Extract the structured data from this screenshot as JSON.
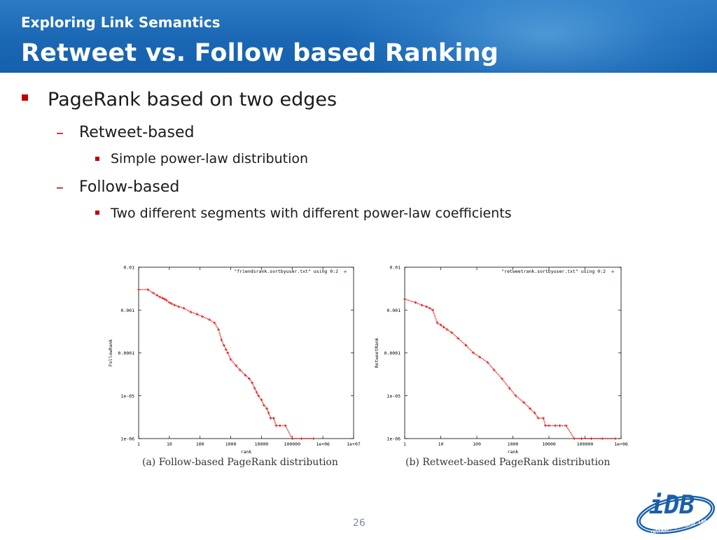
{
  "header": {
    "subtitle": "Exploring Link Semantics",
    "title": "Retweet vs. Follow based Ranking"
  },
  "bullets": {
    "l1": "PageRank based on two edges",
    "retweet": "Retweet-based",
    "retweet_sub": "Simple power-law distribution",
    "follow": "Follow-based",
    "follow_sub": "Two different segments with different power-law coefficients",
    "dash": "–"
  },
  "colors": {
    "accent": "#c00000",
    "header": "#1a67b3",
    "marker": "#e00000"
  },
  "chart_data": [
    {
      "type": "scatter",
      "title": "",
      "caption": "(a) Follow-based PageRank distribution",
      "legend": "\"friendsrank.sortbyuser.txt\" using 0:2",
      "legend_position": "top-right",
      "xlabel": "rank",
      "ylabel": "FollowRank",
      "xscale": "log",
      "yscale": "log",
      "xlim": [
        1,
        10000000
      ],
      "ylim": [
        1e-06,
        0.01
      ],
      "xticks": [
        "1",
        "10",
        "100",
        "1000",
        "10000",
        "100000",
        "1e+06",
        "1e+07"
      ],
      "yticks": [
        "1e-06",
        "1e-05",
        "0.0001",
        "0.001",
        "0.01"
      ],
      "series": [
        {
          "x": [
            1,
            2,
            3,
            4,
            5,
            6,
            7,
            8,
            10,
            12,
            15,
            20,
            30,
            50,
            80,
            120,
            200,
            300,
            400,
            500,
            600,
            700,
            800,
            1000,
            1500,
            2000,
            3000,
            4000,
            5000,
            6000,
            7000,
            8000,
            10000,
            12000,
            15000,
            17000,
            20000,
            25000,
            30000,
            40000,
            60000,
            100000,
            200000,
            500000
          ],
          "y": [
            0.003,
            0.003,
            0.0025,
            0.0022,
            0.002,
            0.0019,
            0.0018,
            0.0017,
            0.0015,
            0.0014,
            0.0013,
            0.0012,
            0.0011,
            0.0009,
            0.0008,
            0.0007,
            0.0006,
            0.0005,
            0.00035,
            0.0002,
            0.00015,
            0.00012,
            0.0001,
            7e-05,
            5e-05,
            4e-05,
            3e-05,
            2.5e-05,
            2e-05,
            1.5e-05,
            1.2e-05,
            1e-05,
            8e-06,
            6e-06,
            5e-06,
            4e-06,
            3e-06,
            3e-06,
            2e-06,
            2e-06,
            2e-06,
            1e-06,
            1e-06,
            1e-06
          ]
        }
      ]
    },
    {
      "type": "scatter",
      "title": "",
      "caption": "(b) Retweet-based PageRank distribution",
      "legend": "\"retweetrank.sortbyuser.txt\" using 0:2",
      "legend_position": "top-right",
      "xlabel": "rank",
      "ylabel": "RetweetRank",
      "xscale": "log",
      "yscale": "log",
      "xlim": [
        1,
        1000000
      ],
      "ylim": [
        1e-06,
        0.01
      ],
      "xticks": [
        "1",
        "10",
        "100",
        "1000",
        "10000",
        "100000",
        "1e+06"
      ],
      "yticks": [
        "1e-06",
        "1e-05",
        "0.0001",
        "0.001",
        "0.01"
      ],
      "series": [
        {
          "x": [
            1,
            2,
            3,
            4,
            5,
            6,
            8,
            10,
            12,
            15,
            20,
            30,
            50,
            80,
            120,
            200,
            300,
            500,
            800,
            1200,
            2000,
            3000,
            4000,
            5000,
            7000,
            8000,
            10000,
            15000,
            20000,
            30000,
            50000,
            80000,
            150000,
            300000,
            700000
          ],
          "y": [
            0.0018,
            0.0015,
            0.0013,
            0.0012,
            0.0011,
            0.001,
            0.0005,
            0.00045,
            0.0004,
            0.00035,
            0.0003,
            0.00022,
            0.00015,
            0.0001,
            8e-05,
            6e-05,
            4e-05,
            2.5e-05,
            1.5e-05,
            1e-05,
            7e-06,
            5e-06,
            4e-06,
            3e-06,
            3e-06,
            2e-06,
            2e-06,
            2e-06,
            2e-06,
            2e-06,
            1e-06,
            1e-06,
            1e-06,
            1e-06,
            1e-06
          ]
        }
      ]
    }
  ],
  "slide_number": "26",
  "logo": {
    "text": "iDB",
    "ring_text": "INTERNET DATABASE LAB"
  }
}
